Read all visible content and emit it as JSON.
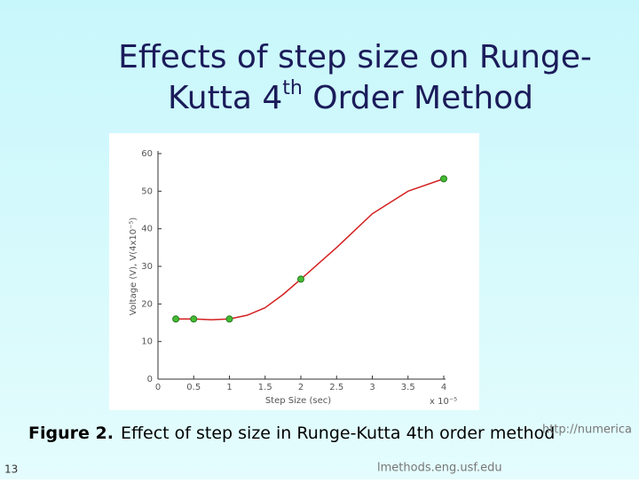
{
  "slide": {
    "title_line1": "Effects of step size on Runge-",
    "title_line2": [
      "Kutta 4",
      "th",
      " Order Method"
    ],
    "caption_bold": "Figure 2.",
    "caption": "Effect of step size in Runge-Kutta 4th order method",
    "page_number": "13",
    "url_part1": "http://numerica",
    "url_part2": "lmethods.eng.usf.edu"
  },
  "chart_data": {
    "type": "line",
    "xlabel": "Step Size (sec)",
    "xmultiplier": "x 10⁻⁵",
    "ylabel": "Voltage (V), V(4x10⁻⁵)",
    "xlim": [
      0,
      4
    ],
    "xticks": [
      0,
      0.5,
      1,
      1.5,
      2,
      2.5,
      3,
      3.5,
      4
    ],
    "ylim": [
      0,
      60
    ],
    "yticks": [
      0,
      10,
      20,
      30,
      40,
      50,
      60
    ],
    "series": [
      {
        "color": "#d42020",
        "x": [
          0.25,
          0.5,
          0.75,
          1,
          1.25,
          1.5,
          1.75,
          2,
          2.5,
          3,
          3.5,
          4
        ],
        "values": [
          16,
          16,
          15.8,
          16,
          17,
          19,
          22.5,
          26.6,
          35,
          44,
          50,
          53.3
        ]
      },
      {
        "color": "#44bb33",
        "markers": true,
        "x": [
          0.25,
          0.5,
          1,
          2,
          4
        ],
        "values": [
          16,
          16,
          16,
          26.6,
          53.3
        ]
      }
    ]
  }
}
